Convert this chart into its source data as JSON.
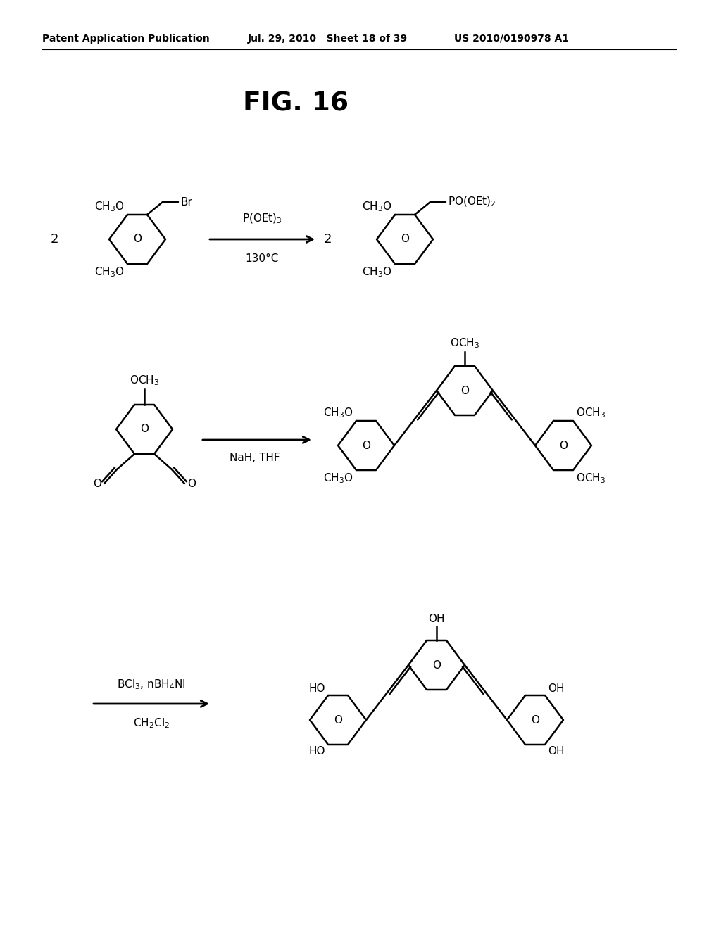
{
  "header_left": "Patent Application Publication",
  "header_mid": "Jul. 29, 2010   Sheet 18 of 39",
  "header_right": "US 2010/0190978 A1",
  "fig_title": "FIG. 16",
  "bg": "#ffffff",
  "lc": "#000000"
}
